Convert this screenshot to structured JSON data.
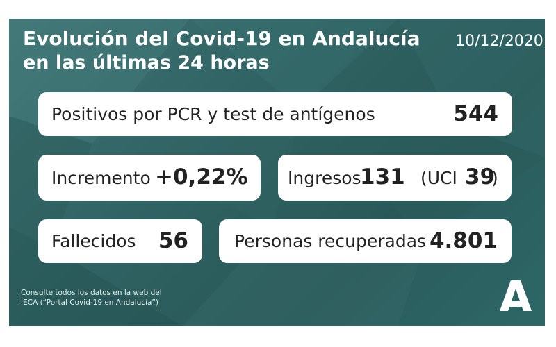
{
  "header": {
    "title": "Evolución del Covid-19 en Andalucía",
    "subtitle": "en las últimas 24 horas",
    "date": "10/12/2020"
  },
  "cards": {
    "positivos": {
      "label": "Positivos por PCR y test de antígenos",
      "value": "544"
    },
    "incremento": {
      "label": "Incremento",
      "value": "+0,22%"
    },
    "ingresos": {
      "label": "Ingresos",
      "value": "131",
      "uci_open": "(UCI",
      "uci_value": "39",
      "uci_close": ")"
    },
    "fallecidos": {
      "label": "Fallecidos",
      "value": "56"
    },
    "recuperadas": {
      "label": "Personas recuperadas",
      "value": "4.801"
    }
  },
  "footer": {
    "line1": "Consulte todos los datos en la web del",
    "line2": "IECA (“Portal Covid-19 en Andalucía”)"
  },
  "logo": {
    "icon": "junta-de-andalucia-logo"
  },
  "colors": {
    "background": "#2f6262",
    "card": "#ffffff",
    "text": "#222222"
  }
}
